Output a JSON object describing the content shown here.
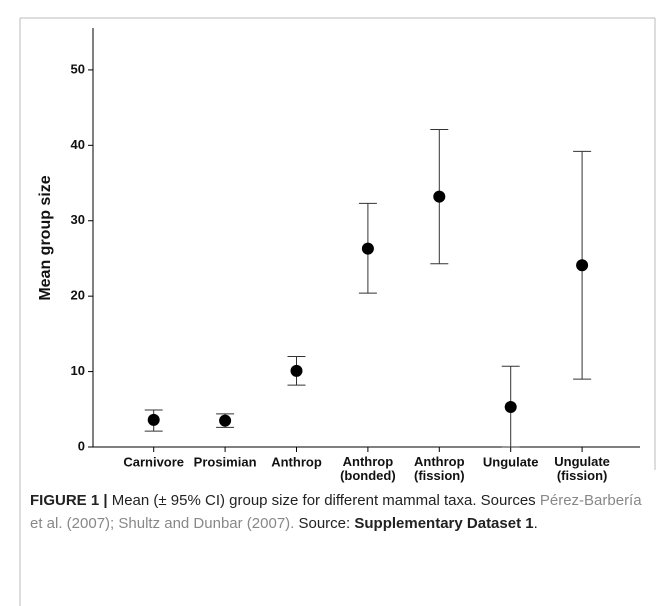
{
  "chart_data": {
    "type": "errorbar",
    "ylabel": "Mean group size",
    "categories": [
      "Carnivore",
      "Prosimian",
      "Anthrop",
      "Anthrop (bonded)",
      "Anthrop (fission)",
      "Ungulate",
      "Ungulate (fission)"
    ],
    "values": [
      3.6,
      3.5,
      10.1,
      26.3,
      33.2,
      5.3,
      24.1
    ],
    "ci_low": [
      2.1,
      2.6,
      8.2,
      20.4,
      24.3,
      0,
      9.0
    ],
    "ci_high": [
      4.9,
      4.4,
      12.0,
      32.3,
      42.1,
      10.7,
      39.2
    ],
    "color": "#000000",
    "ylim": [
      0,
      55
    ],
    "yticks": [
      0,
      10,
      20,
      30,
      40,
      50
    ],
    "grid": false
  },
  "caption": {
    "label": "FIGURE 1 |",
    "text": " Mean (± 95% CI) group size for different mammal taxa. Sources ",
    "sources": "Pérez-Barbería et al. (2007); Shultz and Dunbar (2007).",
    "text2": " Source: ",
    "dataset": "Supplementary Dataset 1",
    "end": "."
  }
}
